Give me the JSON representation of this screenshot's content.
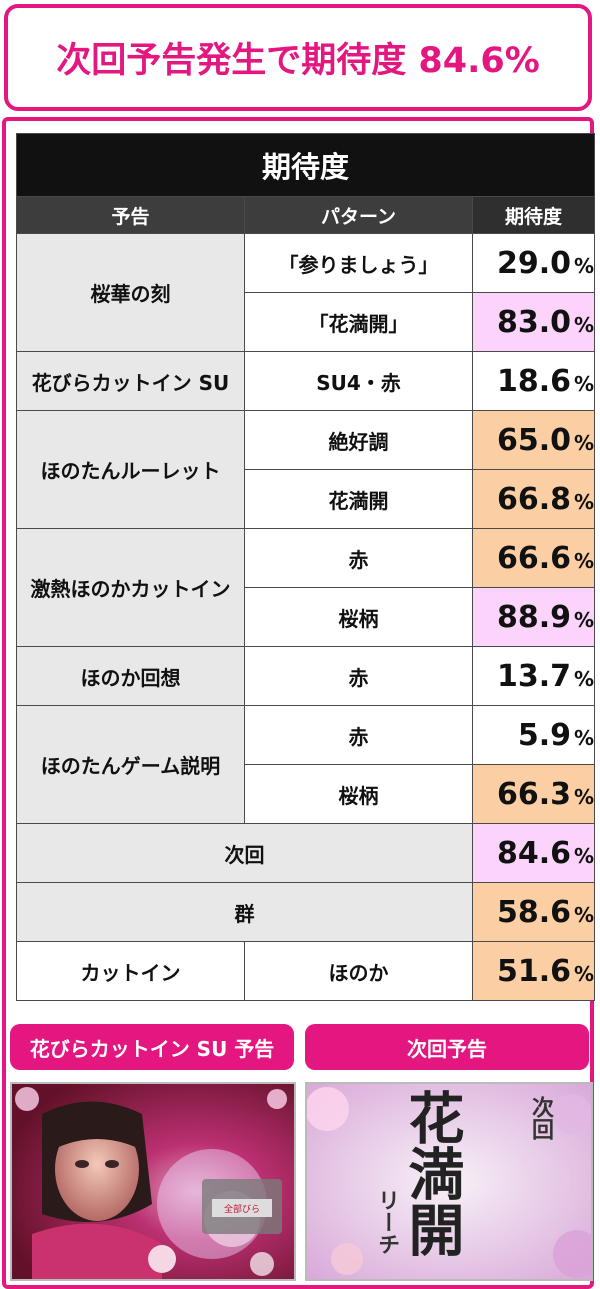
{
  "headline": "次回予告発生で期待度 84.6%",
  "table": {
    "title": "期待度",
    "headers": [
      "予告",
      "パターン",
      "期待度"
    ],
    "rows": [
      {
        "yokoku": "桜華の刻",
        "pattern": "「参りましょう」",
        "value": "29.0",
        "bg": "w"
      },
      {
        "yokoku": "",
        "pattern": "「花満開」",
        "value": "83.0",
        "bg": "p"
      },
      {
        "yokoku": "花びらカットイン SU",
        "pattern": "SU4・赤",
        "value": "18.6",
        "bg": "w"
      },
      {
        "yokoku": "ほのたんルーレット",
        "pattern": "絶好調",
        "value": "65.0",
        "bg": "o"
      },
      {
        "yokoku": "",
        "pattern": "花満開",
        "value": "66.8",
        "bg": "o"
      },
      {
        "yokoku": "激熱ほのかカットイン",
        "pattern": "赤",
        "value": "66.6",
        "bg": "o"
      },
      {
        "yokoku": "",
        "pattern": "桜柄",
        "value": "88.9",
        "bg": "p"
      },
      {
        "yokoku": "ほのか回想",
        "pattern": "赤",
        "value": "13.7",
        "bg": "w"
      },
      {
        "yokoku": "ほのたんゲーム説明",
        "pattern": "赤",
        "value": "5.9",
        "bg": "w"
      },
      {
        "yokoku": "",
        "pattern": "桜柄",
        "value": "66.3",
        "bg": "o"
      },
      {
        "yokoku": "次回",
        "pattern": "",
        "value": "84.6",
        "bg": "p"
      },
      {
        "yokoku": "群",
        "pattern": "",
        "value": "58.6",
        "bg": "o"
      },
      {
        "yokoku": "カットイン",
        "pattern": "ほのか",
        "value": "51.6",
        "bg": "o"
      }
    ],
    "percent": "%"
  },
  "captions": {
    "left": "花びらカットイン SU 予告",
    "right": "次回予告"
  },
  "right_image_text": {
    "big": "花満開",
    "small_top": "次回",
    "small_bottom": "リーチ"
  },
  "left_image_text": "全部びら",
  "colors": {
    "accent": "#e4167f",
    "orange_cell": "#fbcfa3",
    "pink_cell": "#fbd3fb",
    "grey_cell": "#e8e8e8"
  }
}
